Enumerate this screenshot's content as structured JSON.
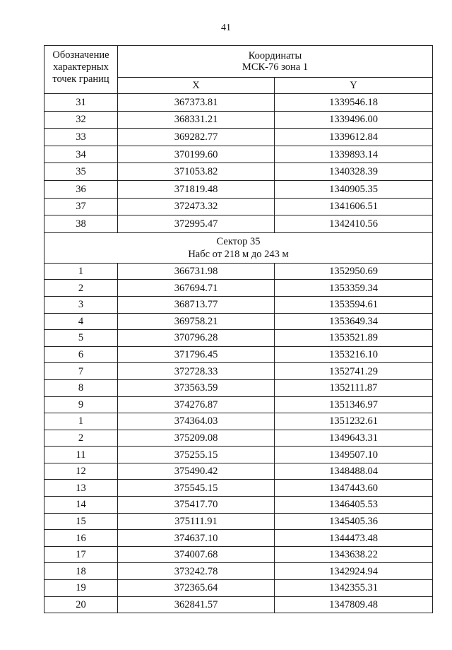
{
  "page_number": "41",
  "header": {
    "point_label": "Обозначение характерных точек границ",
    "coords_title": "Координаты",
    "coords_system": "МСК-76 зона 1",
    "x_label": "X",
    "y_label": "Y"
  },
  "rows_top": [
    {
      "n": "31",
      "x": "367373.81",
      "y": "1339546.18"
    },
    {
      "n": "32",
      "x": "368331.21",
      "y": "1339496.00"
    },
    {
      "n": "33",
      "x": "369282.77",
      "y": "1339612.84"
    },
    {
      "n": "34",
      "x": "370199.60",
      "y": "1339893.14"
    },
    {
      "n": "35",
      "x": "371053.82",
      "y": "1340328.39"
    },
    {
      "n": "36",
      "x": "371819.48",
      "y": "1340905.35"
    },
    {
      "n": "37",
      "x": "372473.32",
      "y": "1341606.51"
    },
    {
      "n": "38",
      "x": "372995.47",
      "y": "1342410.56"
    }
  ],
  "sector": {
    "title": "Сектор 35",
    "range": "Набс от 218 м до 243 м"
  },
  "rows_sector": [
    {
      "n": "1",
      "x": "366731.98",
      "y": "1352950.69"
    },
    {
      "n": "2",
      "x": "367694.71",
      "y": "1353359.34"
    },
    {
      "n": "3",
      "x": "368713.77",
      "y": "1353594.61"
    },
    {
      "n": "4",
      "x": "369758.21",
      "y": "1353649.34"
    },
    {
      "n": "5",
      "x": "370796.28",
      "y": "1353521.89"
    },
    {
      "n": "6",
      "x": "371796.45",
      "y": "1353216.10"
    },
    {
      "n": "7",
      "x": "372728.33",
      "y": "1352741.29"
    },
    {
      "n": "8",
      "x": "373563.59",
      "y": "1352111.87"
    },
    {
      "n": "9",
      "x": "374276.87",
      "y": "1351346.97"
    },
    {
      "n": "1",
      "x": "374364.03",
      "y": "1351232.61"
    },
    {
      "n": "2",
      "x": "375209.08",
      "y": "1349643.31"
    },
    {
      "n": "11",
      "x": "375255.15",
      "y": "1349507.10"
    },
    {
      "n": "12",
      "x": "375490.42",
      "y": "1348488.04"
    },
    {
      "n": "13",
      "x": "375545.15",
      "y": "1347443.60"
    },
    {
      "n": "14",
      "x": "375417.70",
      "y": "1346405.53"
    },
    {
      "n": "15",
      "x": "375111.91",
      "y": "1345405.36"
    },
    {
      "n": "16",
      "x": "374637.10",
      "y": "1344473.48"
    },
    {
      "n": "17",
      "x": "374007.68",
      "y": "1343638.22"
    },
    {
      "n": "18",
      "x": "373242.78",
      "y": "1342924.94"
    },
    {
      "n": "19",
      "x": "372365.64",
      "y": "1342355.31"
    },
    {
      "n": "20",
      "x": "362841.57",
      "y": "1347809.48"
    }
  ]
}
